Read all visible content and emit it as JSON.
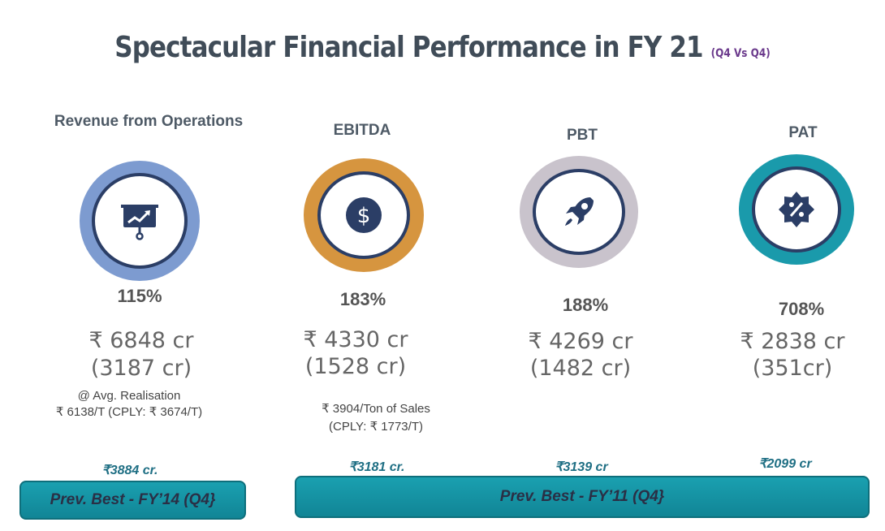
{
  "title": "Spectacular Financial Performance in FY 21",
  "title_sub": "(Q4 Vs Q4)",
  "metrics": [
    {
      "name": "Revenue from Operations",
      "icon": "presentation-chart-icon",
      "ring_color": "#7d9bd0",
      "growth": "115%",
      "amount": "₹ 6848 cr",
      "prev_amount": "(3187 cr)",
      "note_line1": "@ Avg. Realisation",
      "note_line2": "₹ 6138/T (CPLY: ₹ 3674/T)",
      "prev_best": "₹3884 cr."
    },
    {
      "name": "EBITDA",
      "icon": "dollar-icon",
      "ring_color": "#d6953f",
      "growth": "183%",
      "amount": "₹ 4330 cr",
      "prev_amount": "(1528 cr)",
      "note_line1": "₹ 3904/Ton of Sales",
      "note_line2": "(CPLY: ₹ 1773/T)",
      "prev_best": "₹3181 cr."
    },
    {
      "name": "PBT",
      "icon": "rocket-icon",
      "ring_color": "#c9c3cc",
      "growth": "188%",
      "amount": "₹ 4269 cr",
      "prev_amount": "(1482 cr)",
      "prev_best": "₹3139 cr"
    },
    {
      "name": "PAT",
      "icon": "percent-badge-icon",
      "ring_color": "#1a9aab",
      "growth": "708%",
      "amount": "₹ 2838 cr",
      "prev_amount": "(351cr)",
      "prev_best": "₹2099 cr"
    }
  ],
  "banners": {
    "left": "Prev. Best -  FY’14 (Q4}",
    "right": "Prev. Best -  FY’11 (Q4}"
  }
}
